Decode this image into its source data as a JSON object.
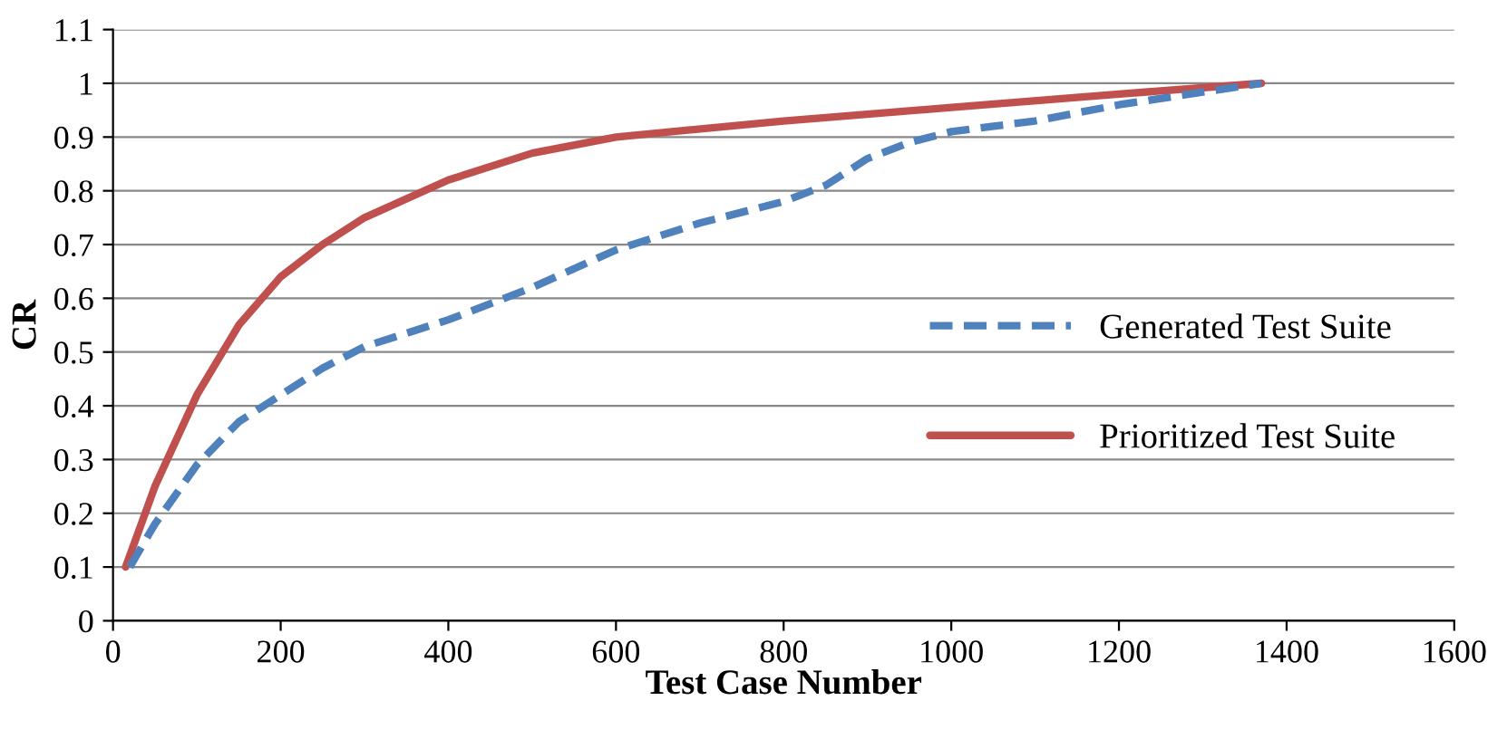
{
  "chart_data": {
    "type": "line",
    "xlabel": "Test Case Number",
    "ylabel": "CR",
    "xlim": [
      0,
      1600
    ],
    "xticks": [
      0,
      200,
      400,
      600,
      800,
      1000,
      1200,
      1400,
      1600
    ],
    "ylim": [
      0,
      1.1
    ],
    "yticks": [
      0,
      0.1,
      0.2,
      0.3,
      0.4,
      0.5,
      0.6,
      0.7,
      0.8,
      0.9,
      1,
      1.1
    ],
    "grid": "y",
    "legend": "right",
    "marker": "none",
    "series": [
      {
        "name": "Generated Test Suite",
        "color": "#4f81bd",
        "line_style": "dashed",
        "x": [
          20,
          50,
          100,
          150,
          200,
          250,
          300,
          400,
          500,
          600,
          700,
          800,
          850,
          900,
          950,
          1000,
          1100,
          1200,
          1370
        ],
        "values": [
          0.1,
          0.18,
          0.29,
          0.37,
          0.42,
          0.47,
          0.51,
          0.56,
          0.62,
          0.69,
          0.74,
          0.78,
          0.81,
          0.86,
          0.89,
          0.91,
          0.93,
          0.96,
          1.0
        ]
      },
      {
        "name": "Prioritized Test Suite",
        "color": "#c0504d",
        "line_style": "solid",
        "x": [
          15,
          50,
          100,
          150,
          200,
          250,
          300,
          400,
          500,
          600,
          800,
          1000,
          1200,
          1370
        ],
        "values": [
          0.1,
          0.25,
          0.42,
          0.55,
          0.64,
          0.7,
          0.75,
          0.82,
          0.87,
          0.9,
          0.93,
          0.955,
          0.98,
          1.0
        ]
      }
    ]
  }
}
